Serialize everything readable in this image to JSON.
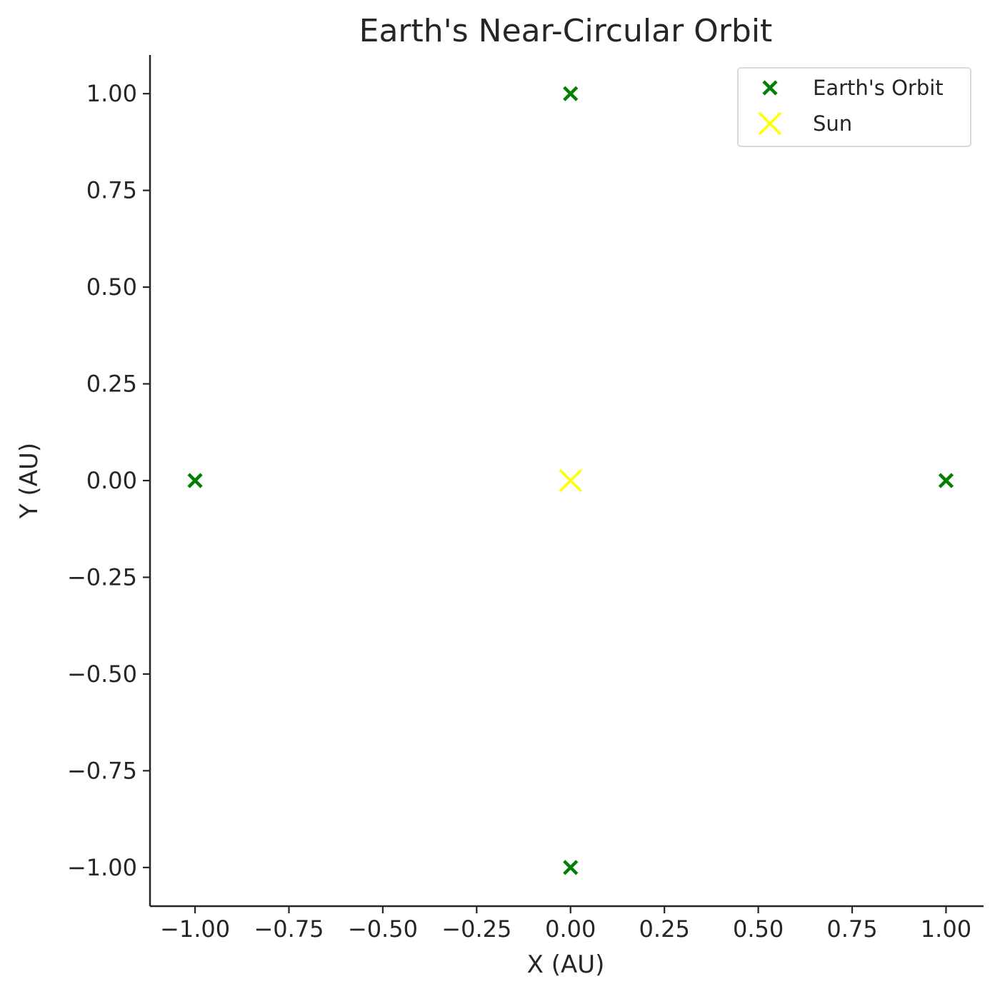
{
  "chart_data": {
    "type": "scatter",
    "title": "Earth's Near-Circular Orbit",
    "xlabel": "X (AU)",
    "ylabel": "Y (AU)",
    "xlim": [
      -1.12,
      1.1
    ],
    "ylim": [
      -1.1,
      1.1
    ],
    "xticks": [
      -1.0,
      -0.75,
      -0.5,
      -0.25,
      0.0,
      0.25,
      0.5,
      0.75,
      1.0
    ],
    "xtick_labels": [
      "−1.00",
      "−0.75",
      "−0.50",
      "−0.25",
      "0.00",
      "0.25",
      "0.50",
      "0.75",
      "1.00"
    ],
    "yticks": [
      1.0,
      0.75,
      0.5,
      0.25,
      0.0,
      -0.25,
      -0.5,
      -0.75,
      -1.0
    ],
    "ytick_labels": [
      "1.00",
      "0.75",
      "0.50",
      "0.25",
      "0.00",
      "−0.25",
      "−0.50",
      "−0.75",
      "−1.00"
    ],
    "grid": false,
    "legend_position": "top-right",
    "series": [
      {
        "name": "Earth's Orbit",
        "marker": "x",
        "color": "#008000",
        "points": [
          [
            1.0,
            0.0
          ],
          [
            0.0,
            1.0
          ],
          [
            -1.0,
            0.0
          ],
          [
            0.0,
            -1.0
          ]
        ]
      },
      {
        "name": "Sun",
        "marker": "x",
        "color": "#ffff00",
        "points": [
          [
            0.0,
            0.0
          ]
        ]
      }
    ]
  }
}
